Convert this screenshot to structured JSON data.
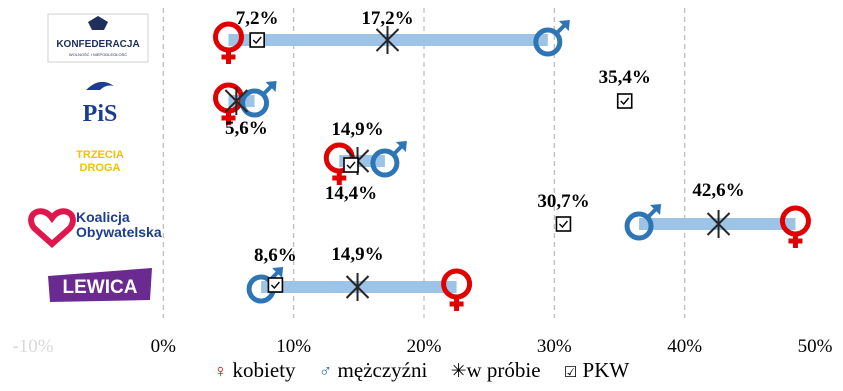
{
  "chart_data": {
    "type": "dumbbell",
    "title": "",
    "xlabel": "",
    "ylabel": "",
    "xlim": [
      -10,
      50
    ],
    "x_ticks": [
      "-10%",
      "0%",
      "10%",
      "20%",
      "30%",
      "40%",
      "50%"
    ],
    "grid": "vertical dashed",
    "categories": [
      {
        "logo": "KONFEDERACJA",
        "logo_sub": "WOLNOŚĆ I NIEPODLEGŁOŚĆ",
        "logo_color": "#1f2f5e"
      },
      {
        "logo": "PiS",
        "logo_color": "#1b3d8f"
      },
      {
        "logo": "TRZECIA DROGA",
        "logo_color": "#f2c200"
      },
      {
        "logo": "Koalicja Obywatelska",
        "logo_color": "#1b3d8f"
      },
      {
        "logo": "LEWICA",
        "logo_color": "#6b2a8f"
      }
    ],
    "series": [
      {
        "name": "kobiety",
        "values": [
          5,
          5,
          13.5,
          48.5,
          22.5
        ]
      },
      {
        "name": "mężczyźni",
        "values": [
          29.5,
          7,
          17,
          36.5,
          7.5
        ]
      },
      {
        "name": "w próbie",
        "values": [
          17.2,
          5.6,
          14.9,
          42.6,
          14.9
        ]
      },
      {
        "name": "PKW",
        "values": [
          7.2,
          35.4,
          14.4,
          30.7,
          8.6
        ]
      }
    ],
    "data_labels": [
      {
        "row": 0,
        "text": "7,2%"
      },
      {
        "row": 0,
        "text": "17,2%"
      },
      {
        "row": 1,
        "text": "35,4%"
      },
      {
        "row": 1,
        "text": "5,6%"
      },
      {
        "row": 2,
        "text": "14,9%"
      },
      {
        "row": 2,
        "text": "14,4%"
      },
      {
        "row": 3,
        "text": "42,6%"
      },
      {
        "row": 3,
        "text": "30,7%"
      },
      {
        "row": 4,
        "text": "8,6%"
      },
      {
        "row": 4,
        "text": "14,9%"
      }
    ],
    "legend_position": "bottom",
    "colors": {
      "female": "#e00000",
      "male": "#2e75b6",
      "bar": "#9dc3e6",
      "grid": "#bfbfbf"
    }
  },
  "legend": {
    "female_symbol": "♀",
    "female": "kobiety",
    "male_symbol": "♂",
    "male": "mężczyźni",
    "sample_symbol": "✳",
    "sample": "w próbie",
    "pkw_symbol": "☑",
    "pkw": "PKW"
  }
}
